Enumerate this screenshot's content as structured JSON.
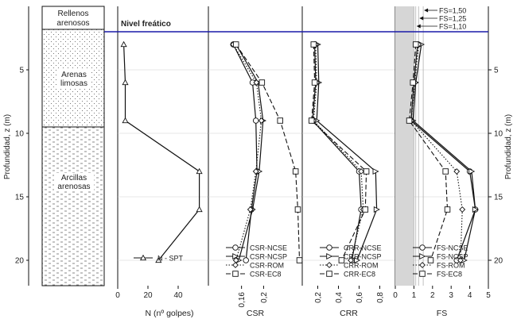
{
  "chart_data": {
    "type": "line",
    "depth_axis": {
      "label": "Profundidad, z (m)",
      "ylim": [
        0,
        22
      ],
      "ticks": [
        5,
        10,
        15,
        20
      ],
      "inverted": true
    },
    "water_table": {
      "label": "Nivel freático",
      "depth": 2.0,
      "color": "#1a1aa8"
    },
    "soil_column": {
      "layers": [
        {
          "name": "Rellenos arenosos",
          "top": 0,
          "bottom": 2.0,
          "pattern": "blank"
        },
        {
          "name": "Arenas limosas",
          "top": 2.0,
          "bottom": 10.5,
          "pattern": "dots"
        },
        {
          "name": "Arcillas arenosas",
          "top": 10.5,
          "bottom": 22,
          "pattern": "dashes"
        }
      ]
    },
    "panels": [
      {
        "id": "spt",
        "xlabel": "N (nº golpes)",
        "xlim": [
          0,
          60
        ],
        "ticks": [
          0,
          20,
          40
        ],
        "series": [
          {
            "name": "N - SPT",
            "marker": "triangle",
            "dash": "solid",
            "x": [
              4,
              5,
              5,
              54,
              54,
              27
            ],
            "z": [
              3,
              6,
              9,
              13,
              16,
              20
            ]
          }
        ]
      },
      {
        "id": "csr",
        "xlabel": "CSR",
        "xlim": [
          0.1,
          0.27
        ],
        "ticks": [
          0.16,
          0.2
        ],
        "series": [
          {
            "name": "CSR-NCSE",
            "marker": "circle",
            "dash": "solid",
            "x": [
              0.145,
              0.18,
              0.186,
              0.188,
              0.178,
              0.168
            ],
            "z": [
              3,
              6,
              9,
              13,
              16,
              20
            ]
          },
          {
            "name": "CSR-NCSP",
            "marker": "triangle-right",
            "dash": "solid",
            "x": [
              0.15,
              0.19,
              0.199,
              0.192,
              0.18,
              0.155
            ],
            "z": [
              3,
              6,
              9,
              13,
              16,
              20
            ]
          },
          {
            "name": "CSR-ROM",
            "marker": "diamond",
            "dash": "dotted",
            "x": [
              0.145,
              0.187,
              0.196,
              0.186,
              0.176,
              0.15
            ],
            "z": [
              3,
              6,
              9,
              13,
              16,
              20
            ]
          },
          {
            "name": "CSR-EC8",
            "marker": "square",
            "dash": "dashed",
            "x": [
              0.15,
              0.197,
              0.23,
              0.258,
              0.262,
              0.265
            ],
            "z": [
              3,
              6,
              9,
              13,
              16,
              20
            ]
          }
        ]
      },
      {
        "id": "crr",
        "xlabel": "CRR",
        "xlim": [
          0.05,
          0.95
        ],
        "ticks": [
          0.2,
          0.4,
          0.6,
          0.8
        ],
        "series": [
          {
            "name": "CRR-NCSE",
            "marker": "circle",
            "dash": "solid",
            "x": [
              0.17,
              0.18,
              0.15,
              0.6,
              0.62,
              0.53
            ],
            "z": [
              3,
              6,
              9,
              13,
              16,
              20
            ]
          },
          {
            "name": "CRR-NCSP",
            "marker": "triangle-right",
            "dash": "solid",
            "x": [
              0.2,
              0.21,
              0.19,
              0.76,
              0.77,
              0.58
            ],
            "z": [
              3,
              6,
              9,
              13,
              16,
              20
            ]
          },
          {
            "name": "CRR-ROM",
            "marker": "diamond",
            "dash": "dotted",
            "x": [
              0.18,
              0.19,
              0.16,
              0.62,
              0.64,
              0.52
            ],
            "z": [
              3,
              6,
              9,
              13,
              16,
              20
            ]
          },
          {
            "name": "CRR-EC8",
            "marker": "square",
            "dash": "dashed",
            "x": [
              0.16,
              0.17,
              0.14,
              0.67,
              0.66,
              0.43
            ],
            "z": [
              3,
              6,
              9,
              13,
              16,
              20
            ]
          }
        ]
      },
      {
        "id": "fs",
        "xlabel": "FS",
        "xlim": [
          0,
          5
        ],
        "ticks": [
          0,
          1,
          2,
          3,
          4,
          5
        ],
        "shade_to": 1.0,
        "thresholds": [
          {
            "label": "FS=1,50",
            "value": 1.5
          },
          {
            "label": "FS=1,25",
            "value": 1.25
          },
          {
            "label": "FS=1,10",
            "value": 1.1
          }
        ],
        "series": [
          {
            "name": "FS-NCSE",
            "marker": "circle",
            "dash": "solid",
            "x": [
              1.2,
              1.0,
              0.85,
              4.0,
              4.3,
              3.3
            ],
            "z": [
              3,
              6,
              9,
              13,
              16,
              20
            ]
          },
          {
            "name": "FS-NCSP",
            "marker": "triangle-right",
            "dash": "solid",
            "x": [
              1.4,
              1.1,
              0.95,
              4.1,
              4.3,
              3.7
            ],
            "z": [
              3,
              6,
              9,
              13,
              16,
              20
            ]
          },
          {
            "name": "FS-ROM",
            "marker": "diamond",
            "dash": "dotted",
            "x": [
              1.25,
              1.05,
              0.85,
              3.3,
              3.6,
              3.5
            ],
            "z": [
              3,
              6,
              9,
              13,
              16,
              20
            ]
          },
          {
            "name": "FS-EC8",
            "marker": "square",
            "dash": "dashed",
            "x": [
              1.1,
              0.95,
              0.75,
              2.7,
              2.8,
              1.9
            ],
            "z": [
              3,
              6,
              9,
              13,
              16,
              20
            ]
          }
        ]
      }
    ]
  }
}
